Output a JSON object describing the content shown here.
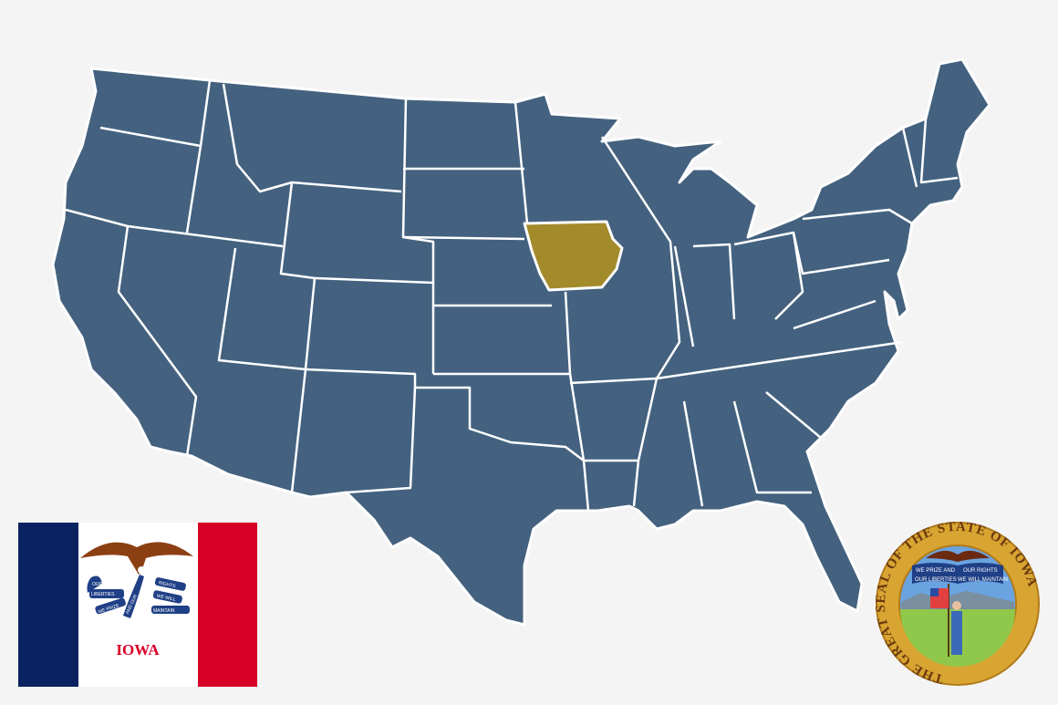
{
  "map": {
    "highlighted_state": "Iowa",
    "colors": {
      "background": "#f4f4f4",
      "states": "#44627f",
      "borders": "#ffffff",
      "highlight": "#a38a2a"
    }
  },
  "flag": {
    "name_text": "IOWA",
    "motto_lines": [
      "OUR",
      "LIBERTIES",
      "WE PRIZE",
      "AND OUR",
      "RIGHTS",
      "WE WILL",
      "MAINTAIN"
    ],
    "colors": {
      "blue": "#0b2260",
      "white": "#ffffff",
      "red": "#d80027",
      "ribbon": "#1f3f86",
      "eagle": "#8c3f12"
    }
  },
  "seal": {
    "ring_text": "THE GREAT SEAL OF THE STATE OF IOWA",
    "ribbon_lines": [
      "WE PRIZE AND",
      "OUR RIGHTS",
      "OUR LIBERTIES",
      "WE WILL MAINTAIN"
    ],
    "colors": {
      "gold": "#d9a532",
      "ring_text": "#6b3a10",
      "sky": "#6aa3e0",
      "ground": "#8fc84a"
    }
  }
}
